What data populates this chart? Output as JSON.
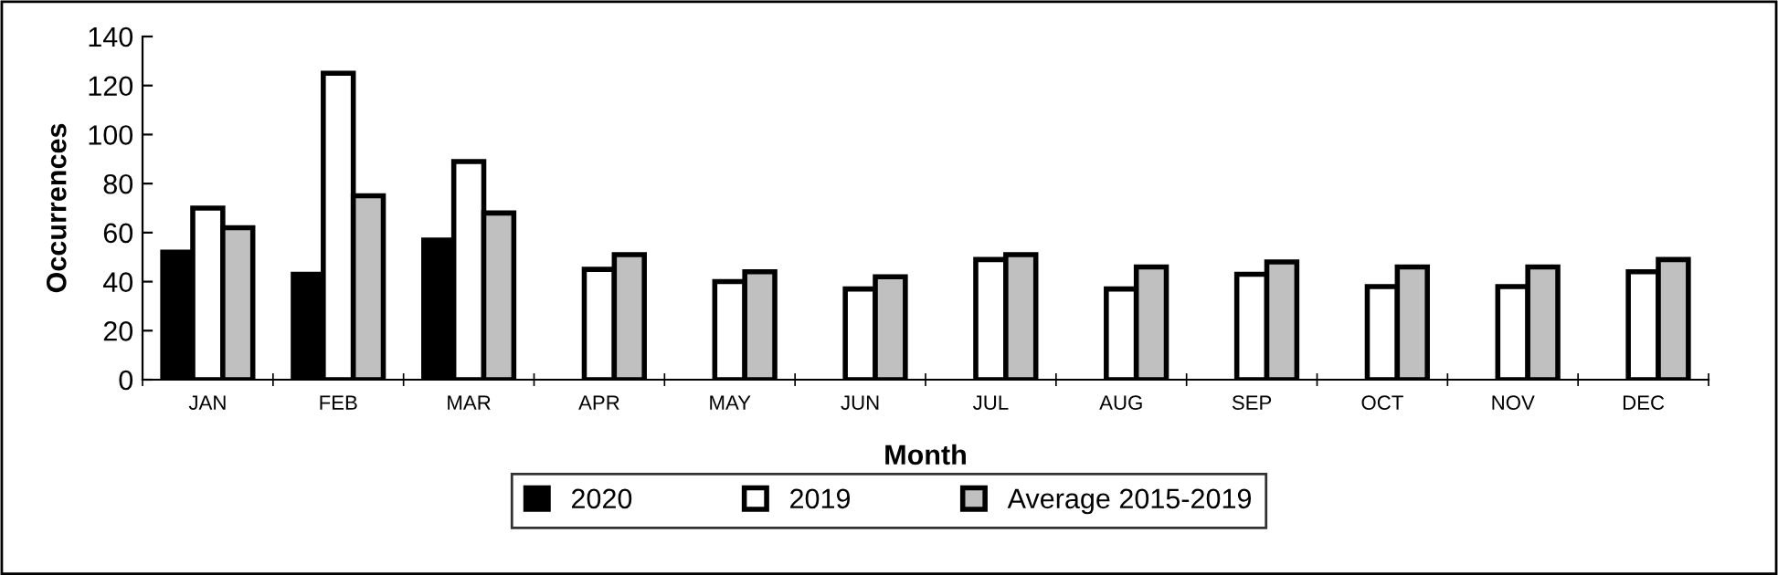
{
  "chart_data": {
    "type": "bar",
    "xlabel": "Month",
    "ylabel": "Occurrences",
    "categories": [
      "JAN",
      "FEB",
      "MAR",
      "APR",
      "MAY",
      "JUN",
      "JUL",
      "AUG",
      "SEP",
      "OCT",
      "NOV",
      "DEC"
    ],
    "series": [
      {
        "name": "2020",
        "color": "#000000",
        "values": [
          52,
          43,
          57,
          null,
          null,
          null,
          null,
          null,
          null,
          null,
          null,
          null
        ]
      },
      {
        "name": "2019",
        "color": "#ffffff",
        "values": [
          70,
          125,
          89,
          45,
          40,
          37,
          49,
          37,
          43,
          38,
          38,
          44
        ]
      },
      {
        "name": "Average 2015-2019",
        "color": "#c0c0c0",
        "values": [
          62,
          75,
          68,
          51,
          44,
          42,
          51,
          46,
          48,
          46,
          46,
          49
        ]
      }
    ],
    "ylim": [
      0,
      140
    ],
    "yticks": [
      0,
      20,
      40,
      60,
      80,
      100,
      120,
      140
    ],
    "grid": false,
    "legend": "bottom"
  }
}
